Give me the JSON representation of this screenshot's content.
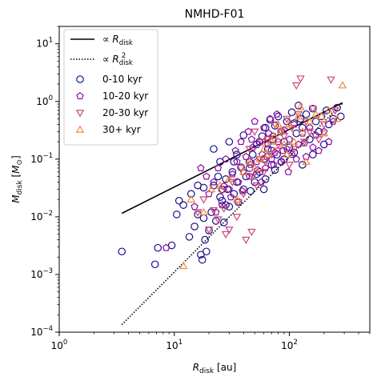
{
  "chart_data": {
    "type": "scatter",
    "title": "NMHD-F01",
    "xlabel": "R_disk [au]",
    "ylabel": "M_disk [M_⊙]",
    "xscale": "log",
    "yscale": "log",
    "xlim": [
      1,
      500
    ],
    "ylim": [
      0.0001,
      20
    ],
    "x_ticks": [
      {
        "value": 1,
        "base": "10",
        "exp": "0"
      },
      {
        "value": 10,
        "base": "10",
        "exp": "1"
      },
      {
        "value": 100,
        "base": "10",
        "exp": "2"
      }
    ],
    "y_ticks": [
      {
        "value": 0.0001,
        "base": "10",
        "exp": "−4"
      },
      {
        "value": 0.001,
        "base": "10",
        "exp": "−3"
      },
      {
        "value": 0.01,
        "base": "10",
        "exp": "−2"
      },
      {
        "value": 0.1,
        "base": "10",
        "exp": "−1"
      },
      {
        "value": 1,
        "base": "10",
        "exp": "0"
      },
      {
        "value": 10,
        "base": "10",
        "exp": "1"
      }
    ],
    "grid": false,
    "legend_position": "upper-left",
    "lines": [
      {
        "name": "∝ R_disk",
        "style": "solid",
        "color": "#000000",
        "x": [
          3.5,
          290
        ],
        "y": [
          0.0115,
          0.95
        ]
      },
      {
        "name": "∝ R_disk^2",
        "style": "dotted",
        "color": "#000000",
        "x": [
          3.5,
          290
        ],
        "y": [
          0.000135,
          0.93
        ]
      }
    ],
    "series": [
      {
        "name": "0-10 kyr",
        "marker": "circle",
        "color": "#1a0f8c",
        "points": [
          [
            3.5,
            0.0025
          ],
          [
            6.8,
            0.0015
          ],
          [
            7.2,
            0.0029
          ],
          [
            9.5,
            0.0032
          ],
          [
            10.5,
            0.011
          ],
          [
            11,
            0.019
          ],
          [
            13.5,
            0.0045
          ],
          [
            15,
            0.0068
          ],
          [
            16,
            0.011
          ],
          [
            16,
            0.035
          ],
          [
            17,
            0.0022
          ],
          [
            17.5,
            0.0018
          ],
          [
            18,
            0.0095
          ],
          [
            18.5,
            0.004
          ],
          [
            19,
            0.0025
          ],
          [
            20,
            0.0058
          ],
          [
            21,
            0.012
          ],
          [
            22,
            0.035
          ],
          [
            23,
            0.0085
          ],
          [
            25,
            0.022
          ],
          [
            26,
            0.019
          ],
          [
            27,
            0.008
          ],
          [
            28,
            0.045
          ],
          [
            29,
            0.03
          ],
          [
            30,
            0.015
          ],
          [
            32,
            0.06
          ],
          [
            33,
            0.025
          ],
          [
            35,
            0.04
          ],
          [
            36,
            0.018
          ],
          [
            38,
            0.072
          ],
          [
            40,
            0.03
          ],
          [
            42,
            0.05
          ],
          [
            45,
            0.09
          ],
          [
            48,
            0.12
          ],
          [
            50,
            0.04
          ],
          [
            52,
            0.18
          ],
          [
            55,
            0.06
          ],
          [
            58,
            0.25
          ],
          [
            60,
            0.1
          ],
          [
            62,
            0.35
          ],
          [
            65,
            0.15
          ],
          [
            68,
            0.48
          ],
          [
            70,
            0.08
          ],
          [
            72,
            0.22
          ],
          [
            75,
            0.38
          ],
          [
            78,
            0.12
          ],
          [
            80,
            0.55
          ],
          [
            85,
            0.3
          ],
          [
            90,
            0.2
          ],
          [
            95,
            0.45
          ],
          [
            100,
            0.16
          ],
          [
            105,
            0.65
          ],
          [
            110,
            0.42
          ],
          [
            115,
            0.28
          ],
          [
            120,
            0.85
          ],
          [
            125,
            0.5
          ],
          [
            130,
            0.35
          ],
          [
            140,
            0.6
          ],
          [
            150,
            0.22
          ],
          [
            160,
            0.75
          ],
          [
            170,
            0.45
          ],
          [
            180,
            0.3
          ],
          [
            190,
            0.55
          ],
          [
            200,
            0.18
          ],
          [
            210,
            0.7
          ],
          [
            220,
            0.4
          ],
          [
            240,
            0.5
          ],
          [
            260,
            0.78
          ],
          [
            280,
            0.55
          ],
          [
            22,
            0.15
          ],
          [
            25,
            0.09
          ],
          [
            30,
            0.2
          ],
          [
            35,
            0.12
          ],
          [
            40,
            0.26
          ],
          [
            45,
            0.07
          ],
          [
            55,
            0.2
          ],
          [
            60,
            0.03
          ],
          [
            70,
            0.14
          ],
          [
            85,
            0.09
          ],
          [
            14,
            0.025
          ],
          [
            12,
            0.016
          ],
          [
            18,
            0.032
          ],
          [
            24,
            0.05
          ],
          [
            28,
            0.016
          ],
          [
            33,
            0.09
          ],
          [
            26,
            0.03
          ],
          [
            46,
            0.028
          ],
          [
            52,
            0.055
          ],
          [
            62,
            0.045
          ],
          [
            75,
            0.065
          ],
          [
            90,
            0.1
          ],
          [
            110,
            0.13
          ],
          [
            130,
            0.08
          ],
          [
            160,
            0.12
          ]
        ]
      },
      {
        "name": "10-20 kyr",
        "marker": "pentagon",
        "color": "#8b0aa5",
        "points": [
          [
            8.5,
            0.0029
          ],
          [
            15,
            0.015
          ],
          [
            17,
            0.07
          ],
          [
            20,
            0.025
          ],
          [
            22,
            0.04
          ],
          [
            24,
            0.07
          ],
          [
            26,
            0.016
          ],
          [
            28,
            0.1
          ],
          [
            30,
            0.03
          ],
          [
            32,
            0.055
          ],
          [
            34,
            0.14
          ],
          [
            36,
            0.04
          ],
          [
            38,
            0.2
          ],
          [
            40,
            0.06
          ],
          [
            42,
            0.11
          ],
          [
            44,
            0.3
          ],
          [
            46,
            0.08
          ],
          [
            48,
            0.16
          ],
          [
            50,
            0.45
          ],
          [
            52,
            0.09
          ],
          [
            55,
            0.2
          ],
          [
            58,
            0.12
          ],
          [
            60,
            0.35
          ],
          [
            62,
            0.07
          ],
          [
            65,
            0.18
          ],
          [
            68,
            0.5
          ],
          [
            70,
            0.1
          ],
          [
            72,
            0.25
          ],
          [
            75,
            0.13
          ],
          [
            78,
            0.6
          ],
          [
            80,
            0.2
          ],
          [
            85,
            0.09
          ],
          [
            90,
            0.32
          ],
          [
            95,
            0.15
          ],
          [
            100,
            0.22
          ],
          [
            105,
            0.12
          ],
          [
            110,
            0.4
          ],
          [
            120,
            0.18
          ],
          [
            130,
            0.28
          ],
          [
            140,
            0.11
          ],
          [
            150,
            0.35
          ],
          [
            160,
            0.16
          ],
          [
            170,
            0.26
          ],
          [
            180,
            0.14
          ],
          [
            200,
            0.3
          ],
          [
            220,
            0.2
          ],
          [
            240,
            0.45
          ],
          [
            27,
            0.034
          ],
          [
            31,
            0.022
          ],
          [
            35,
            0.09
          ],
          [
            39,
            0.028
          ],
          [
            45,
            0.05
          ],
          [
            53,
            0.065
          ],
          [
            57,
            0.04
          ],
          [
            64,
            0.11
          ],
          [
            73,
            0.08
          ],
          [
            88,
            0.14
          ],
          [
            98,
            0.06
          ],
          [
            115,
            0.1
          ],
          [
            135,
            0.19
          ],
          [
            19,
            0.05
          ],
          [
            23,
            0.012
          ],
          [
            47,
            0.22
          ],
          [
            66,
            0.28
          ]
        ]
      },
      {
        "name": "20-30 kyr",
        "marker": "triangle-down",
        "color": "#cc4778",
        "points": [
          [
            16,
            0.012
          ],
          [
            18,
            0.02
          ],
          [
            20,
            0.006
          ],
          [
            22,
            0.013
          ],
          [
            24,
            0.009
          ],
          [
            26,
            0.028
          ],
          [
            28,
            0.005
          ],
          [
            30,
            0.006
          ],
          [
            32,
            0.04
          ],
          [
            35,
            0.01
          ],
          [
            38,
            0.07
          ],
          [
            40,
            0.025
          ],
          [
            42,
            0.004
          ],
          [
            45,
            0.15
          ],
          [
            48,
            0.05
          ],
          [
            50,
            0.3
          ],
          [
            52,
            0.035
          ],
          [
            55,
            0.1
          ],
          [
            58,
            0.2
          ],
          [
            60,
            0.06
          ],
          [
            65,
            0.22
          ],
          [
            70,
            0.12
          ],
          [
            75,
            0.4
          ],
          [
            80,
            0.18
          ],
          [
            85,
            0.3
          ],
          [
            90,
            0.25
          ],
          [
            95,
            0.5
          ],
          [
            100,
            0.08
          ],
          [
            105,
            0.35
          ],
          [
            110,
            0.15
          ],
          [
            120,
            0.6
          ],
          [
            125,
            2.5
          ],
          [
            140,
            0.45
          ],
          [
            150,
            0.3
          ],
          [
            160,
            0.75
          ],
          [
            180,
            0.22
          ],
          [
            200,
            0.4
          ],
          [
            230,
            2.4
          ],
          [
            250,
            0.7
          ],
          [
            27,
            0.014
          ],
          [
            36,
            0.018
          ],
          [
            47,
            0.0055
          ],
          [
            62,
            0.09
          ],
          [
            78,
            0.14
          ],
          [
            115,
            1.9
          ],
          [
            135,
            0.2
          ]
        ]
      },
      {
        "name": "30+ kyr",
        "marker": "triangle-up",
        "color": "#f0883e",
        "points": [
          [
            12,
            0.0014
          ],
          [
            14,
            0.02
          ],
          [
            18,
            0.012
          ],
          [
            21,
            0.03
          ],
          [
            25,
            0.035
          ],
          [
            30,
            0.045
          ],
          [
            35,
            0.02
          ],
          [
            40,
            0.06
          ],
          [
            45,
            0.09
          ],
          [
            50,
            0.07
          ],
          [
            55,
            0.1
          ],
          [
            60,
            0.15
          ],
          [
            65,
            0.12
          ],
          [
            70,
            0.2
          ],
          [
            75,
            0.25
          ],
          [
            80,
            0.4
          ],
          [
            85,
            0.3
          ],
          [
            90,
            0.18
          ],
          [
            100,
            0.4
          ],
          [
            110,
            0.2
          ],
          [
            120,
            0.55
          ],
          [
            125,
            0.8
          ],
          [
            130,
            0.3
          ],
          [
            150,
            0.45
          ],
          [
            170,
            0.6
          ],
          [
            190,
            0.55
          ],
          [
            200,
            0.28
          ],
          [
            220,
            0.7
          ],
          [
            260,
            0.5
          ],
          [
            290,
            1.9
          ],
          [
            140,
            0.09
          ],
          [
            95,
            0.12
          ]
        ]
      }
    ]
  }
}
